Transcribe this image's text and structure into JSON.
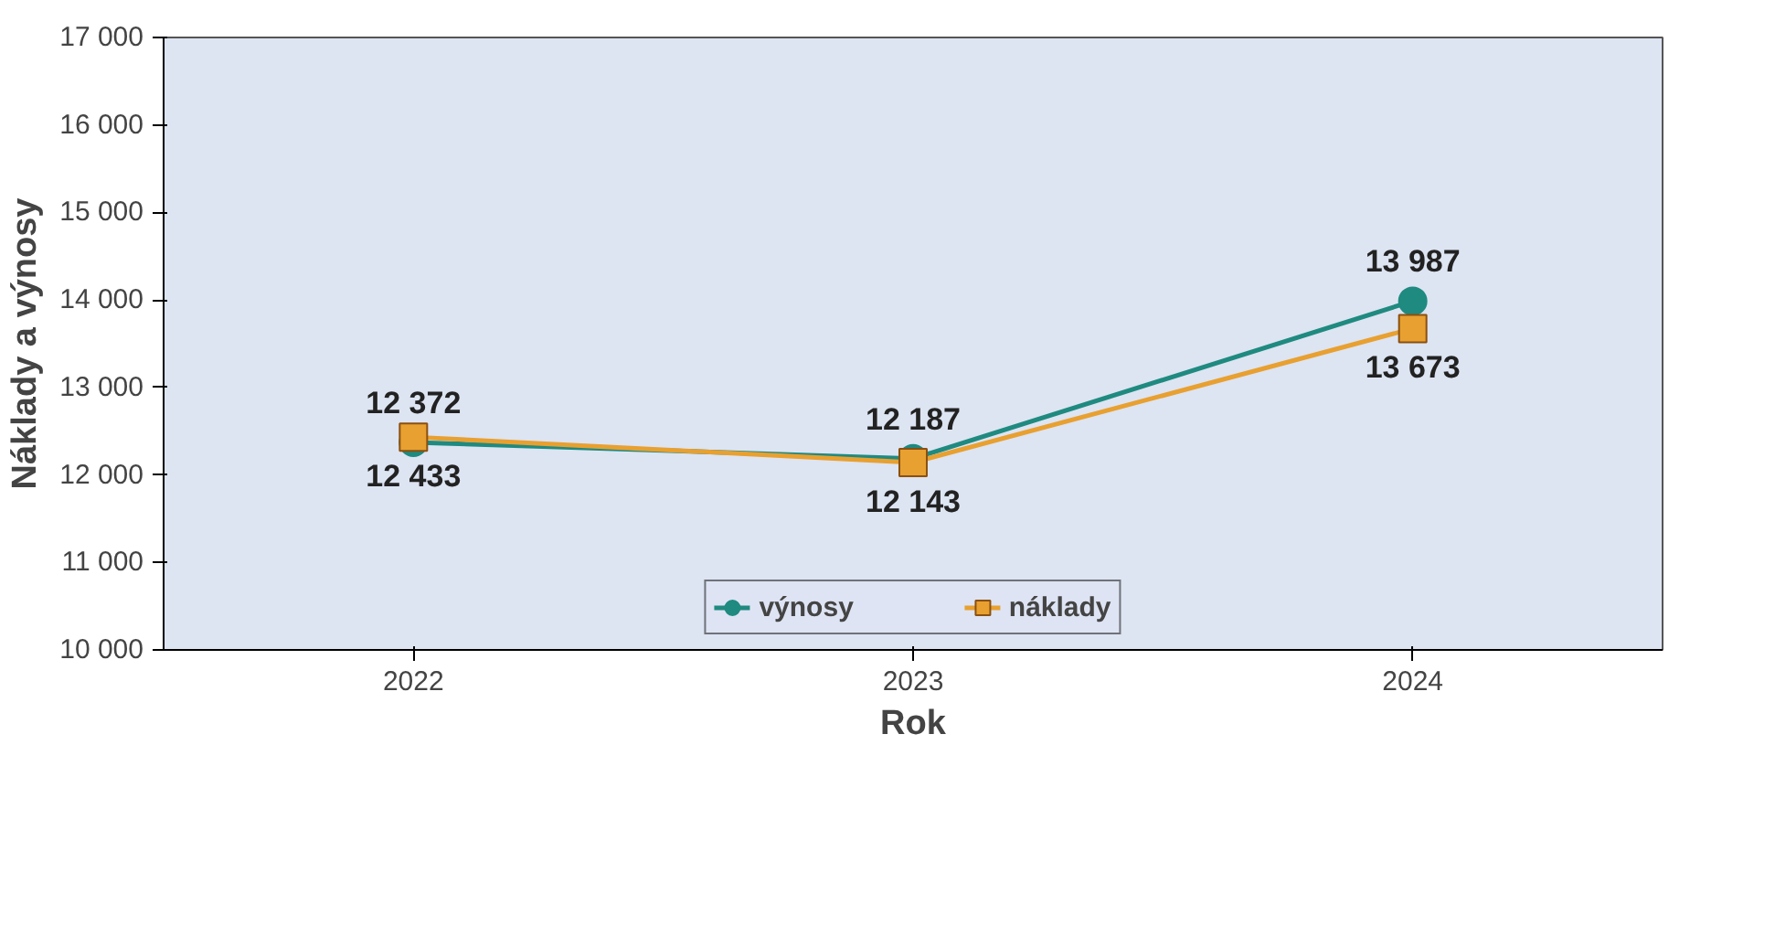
{
  "chart_data": {
    "type": "line",
    "xlabel": "Rok",
    "ylabel": "Náklady a výnosy",
    "categories": [
      "2022",
      "2023",
      "2024"
    ],
    "series": [
      {
        "name": "výnosy",
        "color": "#1f8a80",
        "marker": "circle",
        "values": [
          12372,
          12187,
          13987
        ],
        "value_labels": [
          "12 372",
          "12 187",
          "13 987"
        ]
      },
      {
        "name": "náklady",
        "color": "#e8a030",
        "marker": "square",
        "values": [
          12433,
          12143,
          13673
        ],
        "value_labels": [
          "12 433",
          "12 143",
          "13 673"
        ]
      }
    ],
    "ylim": [
      10000,
      17000
    ],
    "yticks": [
      {
        "value": 10000,
        "label": "10 000"
      },
      {
        "value": 11000,
        "label": "11 000"
      },
      {
        "value": 12000,
        "label": "12 000"
      },
      {
        "value": 13000,
        "label": "13 000"
      },
      {
        "value": 14000,
        "label": "14 000"
      },
      {
        "value": 15000,
        "label": "15 000"
      },
      {
        "value": 16000,
        "label": "16 000"
      },
      {
        "value": 17000,
        "label": "17 000"
      }
    ],
    "grid": false,
    "legend": "bottom"
  }
}
